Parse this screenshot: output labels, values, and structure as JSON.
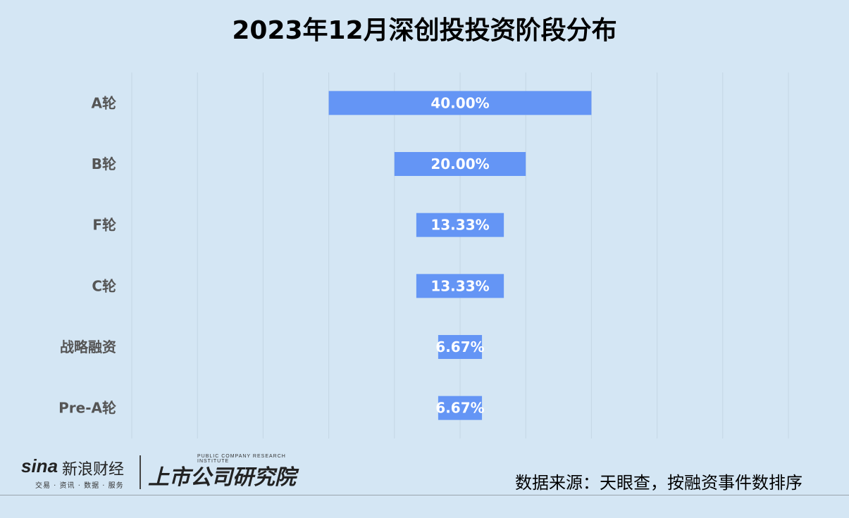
{
  "chart_data": {
    "type": "bar",
    "orientation": "horizontal",
    "layout": "funnel-centered",
    "title": "2023年12月深创投投资阶段分布",
    "categories": [
      "A轮",
      "B轮",
      "F轮",
      "C轮",
      "战略融资",
      "Pre-A轮"
    ],
    "values": [
      40.0,
      20.0,
      13.33,
      13.33,
      6.67,
      6.67
    ],
    "value_labels": [
      "40.00%",
      "20.00%",
      "13.33%",
      "13.33%",
      "6.67%",
      "6.67%"
    ],
    "xlim": [
      -50,
      50
    ],
    "grid": true,
    "bar_color": "#6495f5"
  },
  "footer": {
    "brand_sina": "sina",
    "brand_cn": "新浪财经",
    "brand_sub": "交易 · 资讯 · 数据 · 服务",
    "brand_institute": "上市公司研究院",
    "brand_institute_en": "PUBLIC COMPANY RESEARCH INSTITUTE",
    "source": "数据来源：天眼查，按融资事件数排序"
  }
}
